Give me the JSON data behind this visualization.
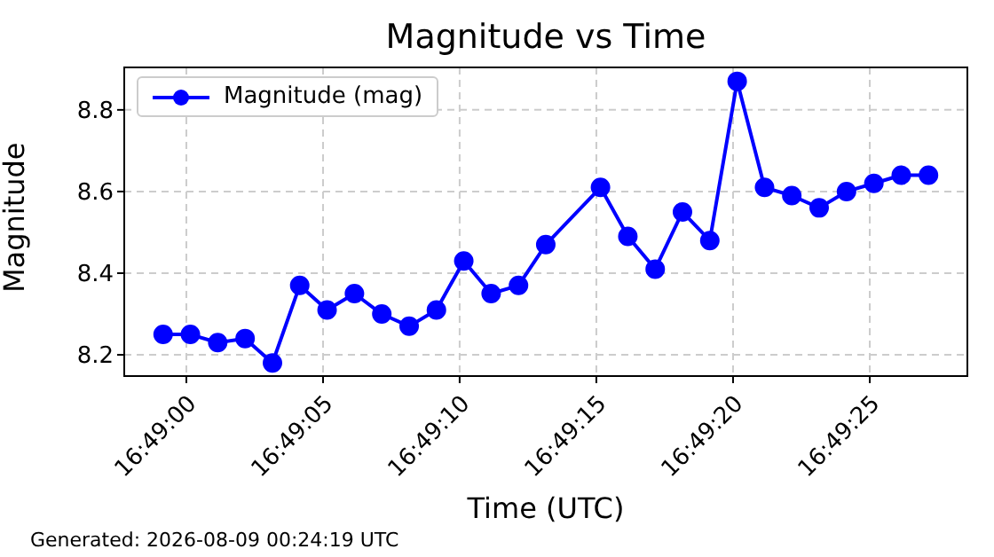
{
  "chart_data": {
    "type": "line",
    "title": "Magnitude vs Time",
    "xlabel": "Time (UTC)",
    "ylabel": "Magnitude",
    "annotations": [
      "Generated: 2026-08-09 00:24:19 UTC"
    ],
    "x": [
      16.816431,
      16.816708,
      16.816986,
      16.817264,
      16.817542,
      16.817819,
      16.818097,
      16.818375,
      16.818653,
      16.818931,
      16.819208,
      16.819486,
      16.819764,
      16.820042,
      16.820319,
      16.820875,
      16.821153,
      16.821431,
      16.821708,
      16.821986,
      16.822264,
      16.822542,
      16.822819,
      16.823097,
      16.823375,
      16.823653,
      16.823931,
      16.824208
    ],
    "series": [
      {
        "name": "Magnitude (mag)",
        "color": "#0000ff",
        "values": [
          8.25,
          8.25,
          8.23,
          8.24,
          8.18,
          8.37,
          8.31,
          8.35,
          8.3,
          8.27,
          8.31,
          8.43,
          8.35,
          8.37,
          8.47,
          8.61,
          8.49,
          8.41,
          8.55,
          8.48,
          8.87,
          8.61,
          8.59,
          8.56,
          8.6,
          8.62,
          8.64,
          8.64
        ]
      }
    ],
    "xlim": [
      16.816036,
      16.824603
    ],
    "xticks": [
      {
        "value": 16.816667,
        "label": "16:49:00"
      },
      {
        "value": 16.818056,
        "label": "16:49:05"
      },
      {
        "value": 16.819444,
        "label": "16:49:10"
      },
      {
        "value": 16.820833,
        "label": "16:49:15"
      },
      {
        "value": 16.822222,
        "label": "16:49:20"
      },
      {
        "value": 16.823611,
        "label": "16:49:25"
      }
    ],
    "ylim": [
      8.148,
      8.904
    ],
    "yticks": [
      8.2,
      8.4,
      8.6,
      8.8
    ],
    "grid": true,
    "legend": "top left",
    "marker": "circle",
    "line_style": "solid"
  }
}
